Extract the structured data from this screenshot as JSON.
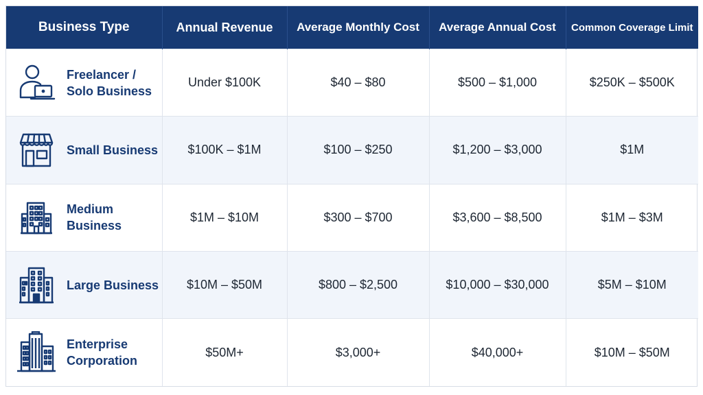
{
  "colors": {
    "header_bg": "#173a73",
    "accent_text": "#173a73",
    "alt_row_bg": "#f1f5fb"
  },
  "header": {
    "business_type": "Business Type",
    "annual_revenue": "Annual Revenue",
    "avg_monthly_cost": "Average Monthly Cost",
    "avg_annual_cost": "Average Annual Cost",
    "coverage_limit": "Common Coverage Limit"
  },
  "rows": [
    {
      "icon": "freelancer-laptop-icon",
      "type": "Freelancer /\nSolo Business",
      "revenue": "Under $100K",
      "monthly": "$40 – $80",
      "annual": "$500 – $1,000",
      "coverage": "$250K – $500K"
    },
    {
      "icon": "storefront-icon",
      "type": "Small Business",
      "revenue": "$100K – $1M",
      "monthly": "$100 – $250",
      "annual": "$1,200 – $3,000",
      "coverage": "$1M"
    },
    {
      "icon": "office-building-icon",
      "type": "Medium Business",
      "revenue": "$1M – $10M",
      "monthly": "$300 – $700",
      "annual": "$3,600 – $8,500",
      "coverage": "$1M – $3M"
    },
    {
      "icon": "large-building-icon",
      "type": "Large Business",
      "revenue": "$10M – $50M",
      "monthly": "$800 – $2,500",
      "annual": "$10,000 – $30,000",
      "coverage": "$5M – $10M"
    },
    {
      "icon": "skyscraper-icon",
      "type": "Enterprise\nCorporation",
      "revenue": "$50M+",
      "monthly": "$3,000+",
      "annual": "$40,000+",
      "coverage": "$10M – $50M"
    }
  ]
}
